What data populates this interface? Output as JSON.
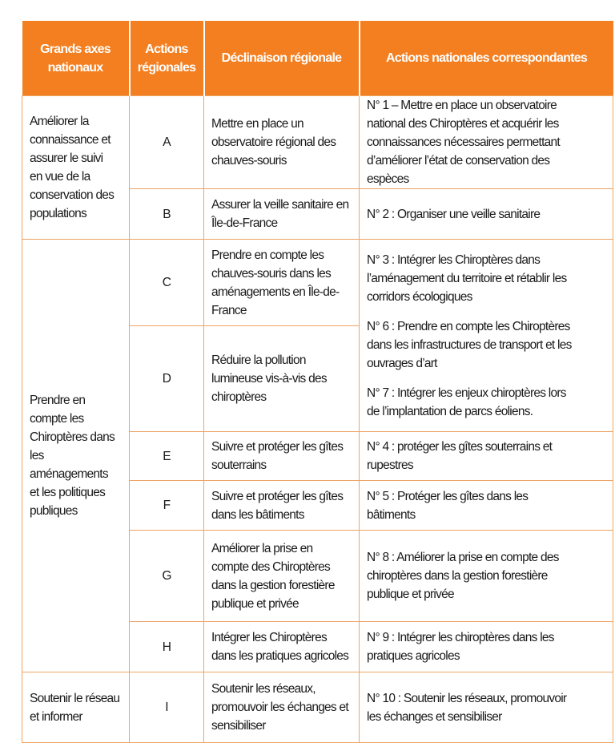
{
  "header": [
    "Grands axes\nnationaux",
    "Actions\nrégionales",
    "Déclinaison régionale",
    "Actions nationales correspondantes"
  ],
  "axes": [
    "Améliorer la\nconnaissance et\nassurer le suivi\nen vue de la\nconservation des\npopulations",
    "Prendre en\ncompte les\nChiroptères dans\nles aménagements\net les politiques\npubliques",
    "Soutenir le réseau\net informer"
  ],
  "rows": [
    {
      "letter": "A",
      "regional": "Mettre en place un\nobservatoire régional des\nchauves-souris",
      "national": "N° 1 – Mettre en place un observatoire\nnational des Chiroptères et acquérir les\nconnaissances nécessaires permettant\nd’améliorer l’état de conservation des\nespèces"
    },
    {
      "letter": "B",
      "regional": "Assurer la veille sanitaire en\nÎle-de-France",
      "national": "N° 2 : Organiser une veille sanitaire"
    },
    {
      "letter": "C",
      "regional": "Prendre en compte les\nchauves-souris dans les\naménagements en Île-de-\nFrance"
    },
    {
      "letter": "D",
      "regional": "Réduire la pollution\nlumineuse vis-à-vis des\nchiroptères"
    },
    {
      "letter": "E",
      "regional": "Suivre et protéger les gîtes\nsouterrains",
      "national": "N° 4 : protéger les gîtes souterrains et\nrupestres"
    },
    {
      "letter": "F",
      "regional": "Suivre et protéger les gîtes\ndans les bâtiments",
      "national": "N° 5 : Protéger les gîtes dans les\nbâtiments"
    },
    {
      "letter": "G",
      "regional": "Améliorer la prise en\ncompte des Chiroptères\ndans la gestion forestière\npublique et privée",
      "national": "N° 8 : Améliorer la prise en compte des\nchiroptères dans la gestion forestière\npublique et privée"
    },
    {
      "letter": "H",
      "regional": "Intégrer les Chiroptères\ndans les pratiques agricoles",
      "national": "N° 9 : Intégrer les chiroptères dans les\npratiques agricoles"
    },
    {
      "letter": "I",
      "regional": "Soutenir les réseaux,\npromouvoir les échanges et\nsensibiliser",
      "national": "N° 10 : Soutenir les réseaux, promouvoir\nles échanges et sensibiliser"
    }
  ],
  "merged_national_CD": [
    "N° 3 : Intégrer les Chiroptères dans\nl’aménagement du territoire et rétablir les\ncorridors écologiques",
    "N° 6 : Prendre en compte les Chiroptères\ndans les infrastructures de transport et les\nouvrages d’art",
    "N° 7 : Intégrer les enjeux chiroptères lors\nde l’implantation de parcs éoliens."
  ],
  "colors": {
    "header_bg": "#f47f20",
    "border": "#eea466"
  }
}
